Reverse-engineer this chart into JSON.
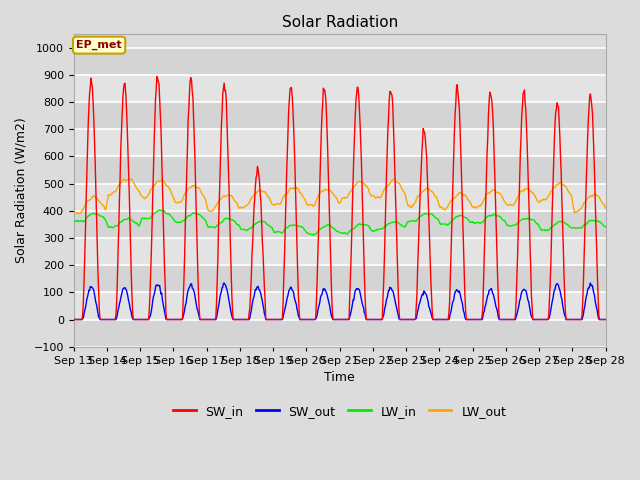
{
  "title": "Solar Radiation",
  "xlabel": "Time",
  "ylabel": "Solar Radiation (W/m2)",
  "ylim": [
    -100,
    1050
  ],
  "background_color": "#dcdcdc",
  "plot_bg_color": "#dcdcdc",
  "grid_color": "white",
  "colors": {
    "SW_in": "red",
    "SW_out": "blue",
    "LW_in": "#00ee00",
    "LW_out": "orange"
  },
  "xtick_labels": [
    "Sep 13",
    "Sep 14",
    "Sep 15",
    "Sep 16",
    "Sep 17",
    "Sep 18",
    "Sep 19",
    "Sep 20",
    "Sep 21",
    "Sep 22",
    "Sep 23",
    "Sep 24",
    "Sep 25",
    "Sep 26",
    "Sep 27",
    "Sep 28"
  ],
  "annotation_text": "EP_met",
  "annotation_color": "#8b0000",
  "annotation_bg": "#ffffcc",
  "annotation_border": "#c8a000",
  "sw_in_peaks": [
    880,
    870,
    900,
    880,
    870,
    550,
    860,
    850,
    850,
    850,
    690,
    850,
    840,
    840,
    800,
    820
  ],
  "sw_out_peaks": [
    120,
    115,
    130,
    130,
    130,
    120,
    115,
    110,
    115,
    115,
    100,
    110,
    110,
    110,
    130,
    130
  ],
  "lw_in_base": [
    360,
    340,
    370,
    360,
    340,
    330,
    320,
    315,
    320,
    330,
    360,
    350,
    355,
    345,
    330,
    335
  ],
  "lw_out_base": [
    390,
    460,
    450,
    430,
    400,
    415,
    425,
    420,
    445,
    450,
    420,
    405,
    415,
    420,
    440,
    400
  ]
}
